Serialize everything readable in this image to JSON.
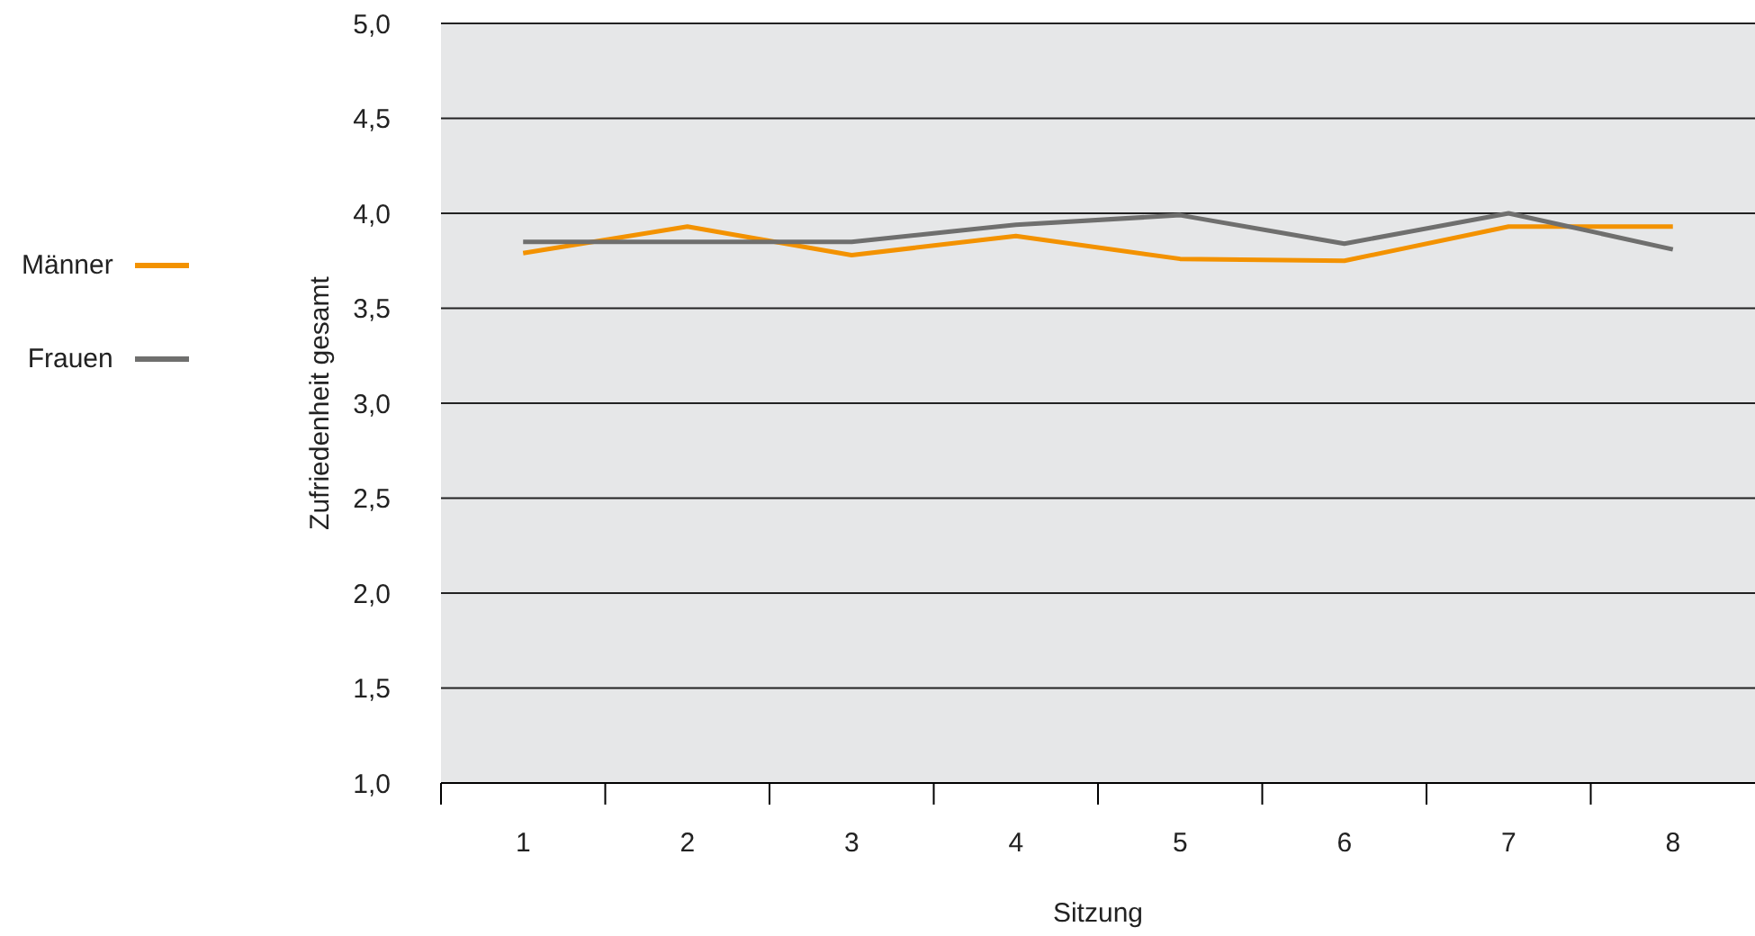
{
  "chart_data": {
    "type": "line",
    "xlabel": "Sitzung",
    "ylabel": "Zufriedenheit gesamt",
    "categories": [
      "1",
      "2",
      "3",
      "4",
      "5",
      "6",
      "7",
      "8"
    ],
    "series": [
      {
        "name": "Männer",
        "color": "#f39200",
        "values": [
          3.79,
          3.93,
          3.78,
          3.88,
          3.76,
          3.75,
          3.93,
          3.93
        ]
      },
      {
        "name": "Frauen",
        "color": "#6f6f6e",
        "values": [
          3.85,
          3.85,
          3.85,
          3.94,
          3.99,
          3.84,
          4.0,
          3.81
        ]
      }
    ],
    "ylim": [
      1,
      5
    ],
    "yticks": [
      {
        "value": 1,
        "label": "1,0"
      },
      {
        "value": 1.5,
        "label": "1,5"
      },
      {
        "value": 2,
        "label": "2,0"
      },
      {
        "value": 2.5,
        "label": "2,5"
      },
      {
        "value": 3,
        "label": "3,0"
      },
      {
        "value": 3.5,
        "label": "3,5"
      },
      {
        "value": 4,
        "label": "4,0"
      },
      {
        "value": 4.5,
        "label": "4,5"
      },
      {
        "value": 5,
        "label": "5,0"
      }
    ],
    "grid": "y",
    "legend": "left",
    "marker": "none",
    "line_style": "solid"
  }
}
